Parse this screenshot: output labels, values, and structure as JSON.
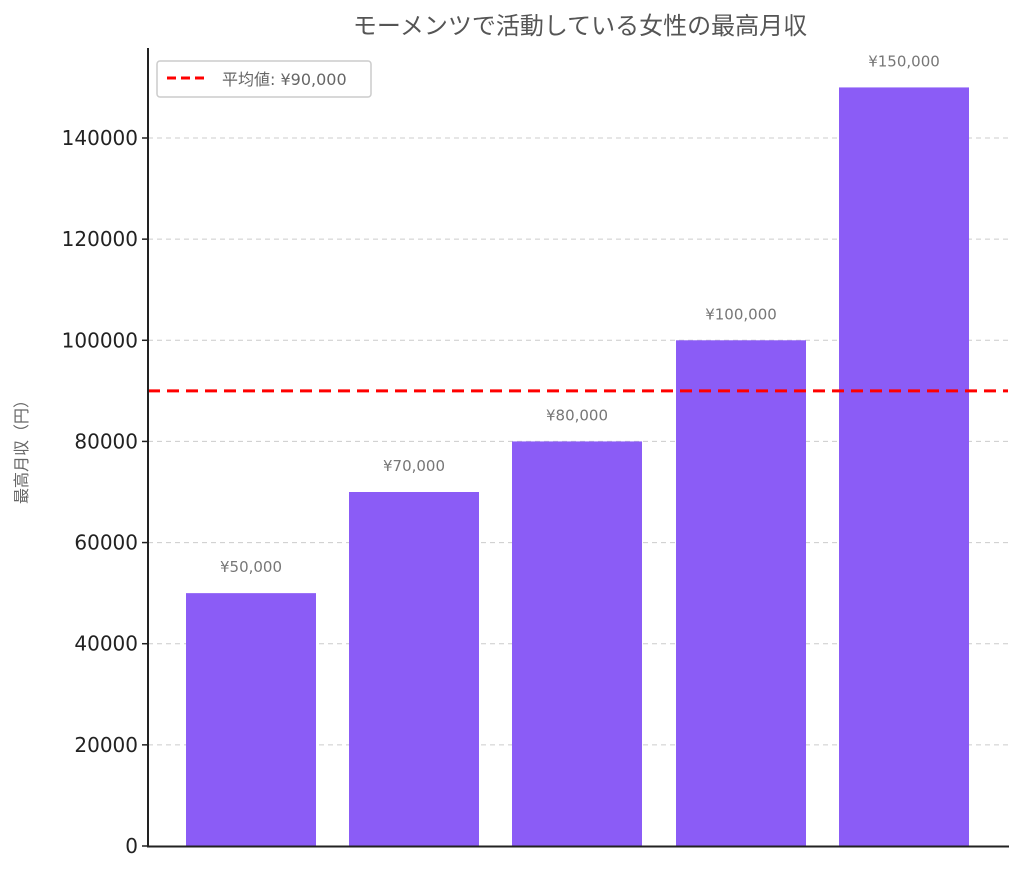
{
  "chart_data": {
    "type": "bar",
    "title": "モーメンツで活動している女性の最高月収",
    "xlabel": "",
    "ylabel": "最高月収（円）",
    "categories": [
      "",
      "",
      "",
      "",
      ""
    ],
    "values": [
      50000,
      70000,
      80000,
      100000,
      150000
    ],
    "value_labels": [
      "¥50,000",
      "¥70,000",
      "¥80,000",
      "¥100,000",
      "¥150,000"
    ],
    "ylim": [
      0,
      157000
    ],
    "yticks": [
      0,
      20000,
      40000,
      60000,
      80000,
      100000,
      120000,
      140000
    ],
    "ytick_labels": [
      "0",
      "20000",
      "40000",
      "60000",
      "80000",
      "100000",
      "120000",
      "140000"
    ],
    "grid": {
      "axis": "y",
      "style": "dashed",
      "color": "#cccccc"
    },
    "bar_color": "#8b5cf6",
    "reference_line": {
      "value": 90000,
      "label": "平均値: ¥90,000",
      "color": "#ff0000",
      "style": "dashed"
    },
    "legend": {
      "position": "upper left",
      "entries": [
        "平均値: ¥90,000"
      ]
    }
  }
}
